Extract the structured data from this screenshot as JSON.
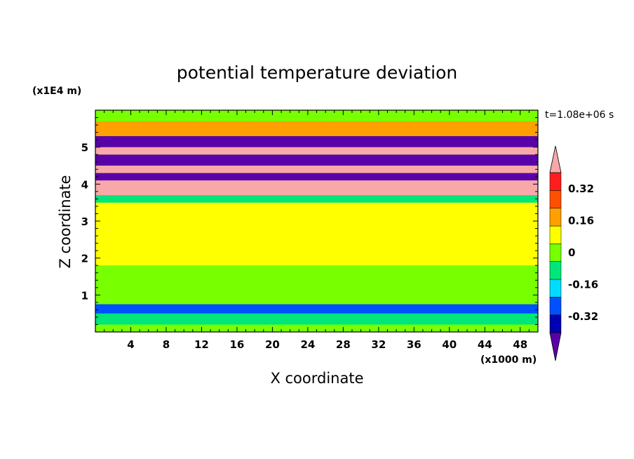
{
  "chart_data": {
    "type": "heatmap",
    "title": "potential temperature deviation",
    "xlabel": "X coordinate",
    "ylabel": "Z coordinate",
    "x_units": "(x1000 m)",
    "y_units": "(x1E4 m)",
    "time_label": "t=1.08e+06 s",
    "xlim": [
      0,
      50
    ],
    "ylim": [
      0,
      6
    ],
    "x_ticks": [
      4,
      8,
      12,
      16,
      20,
      24,
      28,
      32,
      36,
      40,
      44,
      48
    ],
    "x_tick_labels": [
      "4",
      "8",
      "12",
      "16",
      "20",
      "24",
      "28",
      "32",
      "36",
      "40",
      "44",
      "48"
    ],
    "y_ticks": [
      1,
      2,
      3,
      4,
      5
    ],
    "y_tick_labels": [
      "1",
      "2",
      "3",
      "4",
      "5"
    ],
    "colorbar": {
      "levels": [
        -0.4,
        -0.32,
        -0.24,
        -0.16,
        -0.08,
        0,
        0.08,
        0.16,
        0.24,
        0.32,
        0.4
      ],
      "tick_labels": [
        "0.32",
        "0.16",
        "0",
        "-0.16",
        "-0.32"
      ],
      "tick_values": [
        0.32,
        0.16,
        0,
        -0.16,
        -0.32
      ],
      "colors": [
        "#5a00a8",
        "#0000b4",
        "#0050ff",
        "#00dcff",
        "#00e678",
        "#78ff00",
        "#ffff00",
        "#ffa000",
        "#ff5000",
        "#ff1e1e",
        "#f8a8a8"
      ],
      "extend": "both"
    },
    "bands": [
      {
        "z": [
          0.0,
          0.2
        ],
        "value": -0.08
      },
      {
        "z": [
          0.2,
          0.5
        ],
        "value": -0.16
      },
      {
        "z": [
          0.5,
          0.75
        ],
        "value": -0.32
      },
      {
        "z": [
          0.75,
          1.8
        ],
        "value": -0.08
      },
      {
        "z": [
          1.8,
          3.5
        ],
        "value": 0.0
      },
      {
        "z": [
          3.5,
          3.7
        ],
        "value": -0.16
      },
      {
        "z": [
          3.7,
          4.1
        ],
        "value": 0.45
      },
      {
        "z": [
          4.1,
          4.3
        ],
        "value": -0.45
      },
      {
        "z": [
          4.3,
          4.5
        ],
        "value": 0.45
      },
      {
        "z": [
          4.5,
          4.8
        ],
        "value": -0.45
      },
      {
        "z": [
          4.8,
          5.0
        ],
        "value": 0.45
      },
      {
        "z": [
          5.0,
          5.3
        ],
        "value": -0.45
      },
      {
        "z": [
          5.3,
          5.7
        ],
        "value": 0.08
      },
      {
        "z": [
          5.7,
          6.0
        ],
        "value": -0.08
      }
    ]
  }
}
